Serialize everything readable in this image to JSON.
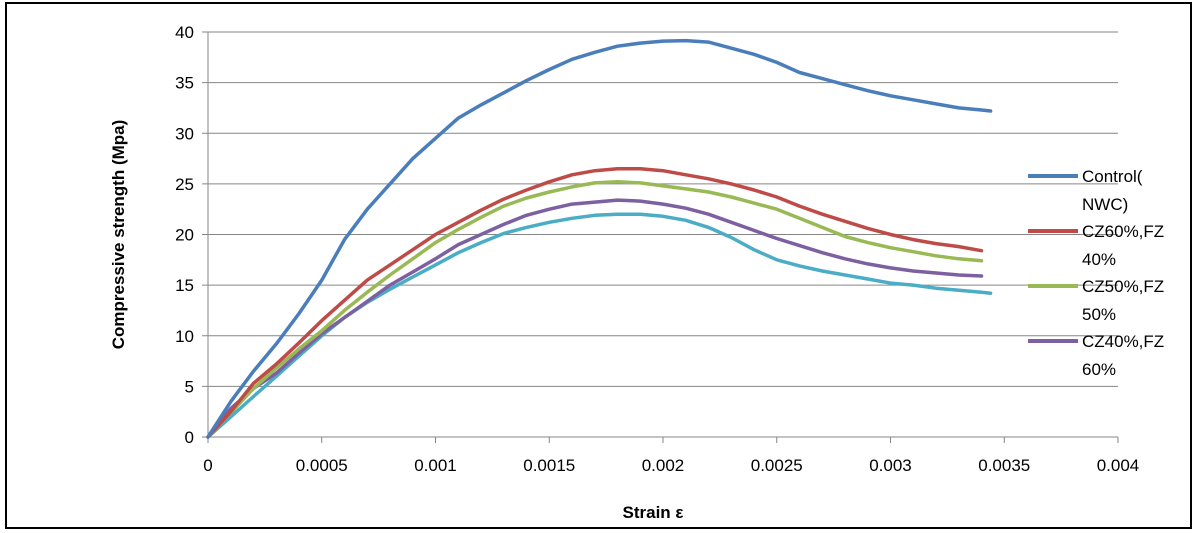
{
  "chart_data": {
    "type": "line",
    "xlabel": "Strain ε",
    "ylabel": "Compressive strength (Mpa)",
    "xlim": [
      0,
      0.004
    ],
    "ylim": [
      0,
      40
    ],
    "x_ticks": [
      "0",
      "0.0005",
      "0.001",
      "0.0015",
      "0.002",
      "0.0025",
      "0.003",
      "0.0035",
      "0.004"
    ],
    "x_tick_values": [
      0,
      0.0005,
      0.001,
      0.0015,
      0.002,
      0.0025,
      0.003,
      0.0035,
      0.004
    ],
    "y_ticks": [
      "0",
      "5",
      "10",
      "15",
      "20",
      "25",
      "30",
      "35",
      "40"
    ],
    "y_tick_values": [
      0,
      5,
      10,
      15,
      20,
      25,
      30,
      35,
      40
    ],
    "grid": "horizontal",
    "legend_position": "right",
    "series": [
      {
        "name": "Control(NWC)",
        "legend_lines": [
          "Control(",
          "NWC)"
        ],
        "color": "#4A7EBB",
        "points": [
          [
            0,
            0
          ],
          [
            0.0001,
            3.5
          ],
          [
            0.0002,
            6.5
          ],
          [
            0.0003,
            9.2
          ],
          [
            0.0004,
            12.2
          ],
          [
            0.0005,
            15.5
          ],
          [
            0.0006,
            19.5
          ],
          [
            0.0007,
            22.5
          ],
          [
            0.0008,
            25
          ],
          [
            0.0009,
            27.5
          ],
          [
            0.001,
            29.5
          ],
          [
            0.0011,
            31.5
          ],
          [
            0.0012,
            32.8
          ],
          [
            0.0013,
            34
          ],
          [
            0.0014,
            35.2
          ],
          [
            0.0015,
            36.3
          ],
          [
            0.0016,
            37.3
          ],
          [
            0.0017,
            38
          ],
          [
            0.0018,
            38.6
          ],
          [
            0.0019,
            38.9
          ],
          [
            0.002,
            39.1
          ],
          [
            0.0021,
            39.15
          ],
          [
            0.0022,
            39
          ],
          [
            0.0023,
            38.4
          ],
          [
            0.0024,
            37.8
          ],
          [
            0.0025,
            37
          ],
          [
            0.0026,
            36
          ],
          [
            0.0027,
            35.4
          ],
          [
            0.0028,
            34.8
          ],
          [
            0.0029,
            34.2
          ],
          [
            0.003,
            33.7
          ],
          [
            0.0031,
            33.3
          ],
          [
            0.0032,
            32.9
          ],
          [
            0.0033,
            32.5
          ],
          [
            0.0034,
            32.3
          ],
          [
            0.00344,
            32.2
          ]
        ]
      },
      {
        "name": "CZ60%,FZ 40%",
        "legend_lines": [
          "CZ60%,FZ",
          "40%"
        ],
        "color": "#BE4B48",
        "points": [
          [
            0,
            0
          ],
          [
            0.0001,
            2.5
          ],
          [
            0.0002,
            5.3
          ],
          [
            0.0003,
            7.2
          ],
          [
            0.0004,
            9.3
          ],
          [
            0.0005,
            11.5
          ],
          [
            0.0006,
            13.5
          ],
          [
            0.0007,
            15.5
          ],
          [
            0.0008,
            17
          ],
          [
            0.0009,
            18.5
          ],
          [
            0.001,
            20
          ],
          [
            0.0011,
            21.2
          ],
          [
            0.0012,
            22.4
          ],
          [
            0.0013,
            23.5
          ],
          [
            0.0014,
            24.4
          ],
          [
            0.0015,
            25.2
          ],
          [
            0.0016,
            25.9
          ],
          [
            0.0017,
            26.3
          ],
          [
            0.0018,
            26.5
          ],
          [
            0.0019,
            26.5
          ],
          [
            0.002,
            26.3
          ],
          [
            0.0021,
            25.9
          ],
          [
            0.0022,
            25.5
          ],
          [
            0.0023,
            25
          ],
          [
            0.0024,
            24.4
          ],
          [
            0.0025,
            23.7
          ],
          [
            0.0026,
            22.8
          ],
          [
            0.0027,
            22
          ],
          [
            0.0028,
            21.3
          ],
          [
            0.0029,
            20.6
          ],
          [
            0.003,
            20
          ],
          [
            0.0031,
            19.5
          ],
          [
            0.0032,
            19.1
          ],
          [
            0.0033,
            18.8
          ],
          [
            0.0034,
            18.4
          ]
        ]
      },
      {
        "name": "CZ50%,FZ 50%",
        "legend_lines": [
          "CZ50%,FZ",
          "50%"
        ],
        "color": "#98B954",
        "points": [
          [
            0,
            0
          ],
          [
            0.0001,
            2.4
          ],
          [
            0.0002,
            4.8
          ],
          [
            0.0003,
            6.8
          ],
          [
            0.0004,
            8.7
          ],
          [
            0.0005,
            10.5
          ],
          [
            0.0006,
            12.5
          ],
          [
            0.0007,
            14.3
          ],
          [
            0.0008,
            16
          ],
          [
            0.0009,
            17.6
          ],
          [
            0.001,
            19.2
          ],
          [
            0.0011,
            20.5
          ],
          [
            0.0012,
            21.7
          ],
          [
            0.0013,
            22.8
          ],
          [
            0.0014,
            23.6
          ],
          [
            0.0015,
            24.2
          ],
          [
            0.0016,
            24.7
          ],
          [
            0.0017,
            25.1
          ],
          [
            0.0018,
            25.2
          ],
          [
            0.0019,
            25.1
          ],
          [
            0.002,
            24.8
          ],
          [
            0.0021,
            24.5
          ],
          [
            0.0022,
            24.2
          ],
          [
            0.0023,
            23.7
          ],
          [
            0.0024,
            23.1
          ],
          [
            0.0025,
            22.5
          ],
          [
            0.0026,
            21.6
          ],
          [
            0.0027,
            20.7
          ],
          [
            0.0028,
            19.8
          ],
          [
            0.0029,
            19.2
          ],
          [
            0.003,
            18.7
          ],
          [
            0.0031,
            18.3
          ],
          [
            0.0032,
            17.9
          ],
          [
            0.0033,
            17.6
          ],
          [
            0.0034,
            17.4
          ]
        ]
      },
      {
        "name": "CZ40%,FZ 60%",
        "legend_lines": [
          "CZ40%,FZ",
          "60%"
        ],
        "color": "#7D60A0",
        "points": [
          [
            0,
            0
          ],
          [
            0.0001,
            2.8
          ],
          [
            0.0002,
            4.8
          ],
          [
            0.0003,
            6.3
          ],
          [
            0.0004,
            8.3
          ],
          [
            0.0005,
            10.2
          ],
          [
            0.0006,
            11.8
          ],
          [
            0.0007,
            13.4
          ],
          [
            0.0008,
            15
          ],
          [
            0.0009,
            16.3
          ],
          [
            0.001,
            17.6
          ],
          [
            0.0011,
            19
          ],
          [
            0.0012,
            20
          ],
          [
            0.0013,
            21
          ],
          [
            0.0014,
            21.9
          ],
          [
            0.0015,
            22.5
          ],
          [
            0.0016,
            23
          ],
          [
            0.0017,
            23.2
          ],
          [
            0.0018,
            23.4
          ],
          [
            0.0019,
            23.3
          ],
          [
            0.002,
            23
          ],
          [
            0.0021,
            22.6
          ],
          [
            0.0022,
            22
          ],
          [
            0.0023,
            21.2
          ],
          [
            0.0024,
            20.4
          ],
          [
            0.0025,
            19.6
          ],
          [
            0.0026,
            18.9
          ],
          [
            0.0027,
            18.2
          ],
          [
            0.0028,
            17.6
          ],
          [
            0.0029,
            17.1
          ],
          [
            0.003,
            16.7
          ],
          [
            0.0031,
            16.4
          ],
          [
            0.0032,
            16.2
          ],
          [
            0.0033,
            16
          ],
          [
            0.0034,
            15.9
          ]
        ]
      },
      {
        "name": "",
        "legend_lines": [],
        "color": "#4BACC6",
        "points": [
          [
            0,
            0
          ],
          [
            0.0001,
            2
          ],
          [
            0.0002,
            4
          ],
          [
            0.0003,
            6
          ],
          [
            0.0004,
            8
          ],
          [
            0.0005,
            10
          ],
          [
            0.0006,
            11.8
          ],
          [
            0.0007,
            13.3
          ],
          [
            0.0008,
            14.6
          ],
          [
            0.0009,
            15.8
          ],
          [
            0.001,
            17
          ],
          [
            0.0011,
            18.2
          ],
          [
            0.0012,
            19.2
          ],
          [
            0.0013,
            20.1
          ],
          [
            0.0014,
            20.7
          ],
          [
            0.0015,
            21.2
          ],
          [
            0.0016,
            21.6
          ],
          [
            0.0017,
            21.9
          ],
          [
            0.0018,
            22
          ],
          [
            0.0019,
            22
          ],
          [
            0.002,
            21.8
          ],
          [
            0.0021,
            21.4
          ],
          [
            0.0022,
            20.7
          ],
          [
            0.0023,
            19.7
          ],
          [
            0.0024,
            18.5
          ],
          [
            0.0025,
            17.5
          ],
          [
            0.0026,
            16.9
          ],
          [
            0.0027,
            16.4
          ],
          [
            0.0028,
            16
          ],
          [
            0.0029,
            15.6
          ],
          [
            0.003,
            15.2
          ],
          [
            0.0031,
            15
          ],
          [
            0.0032,
            14.7
          ],
          [
            0.0033,
            14.5
          ],
          [
            0.0034,
            14.3
          ],
          [
            0.00344,
            14.2
          ]
        ]
      }
    ]
  }
}
